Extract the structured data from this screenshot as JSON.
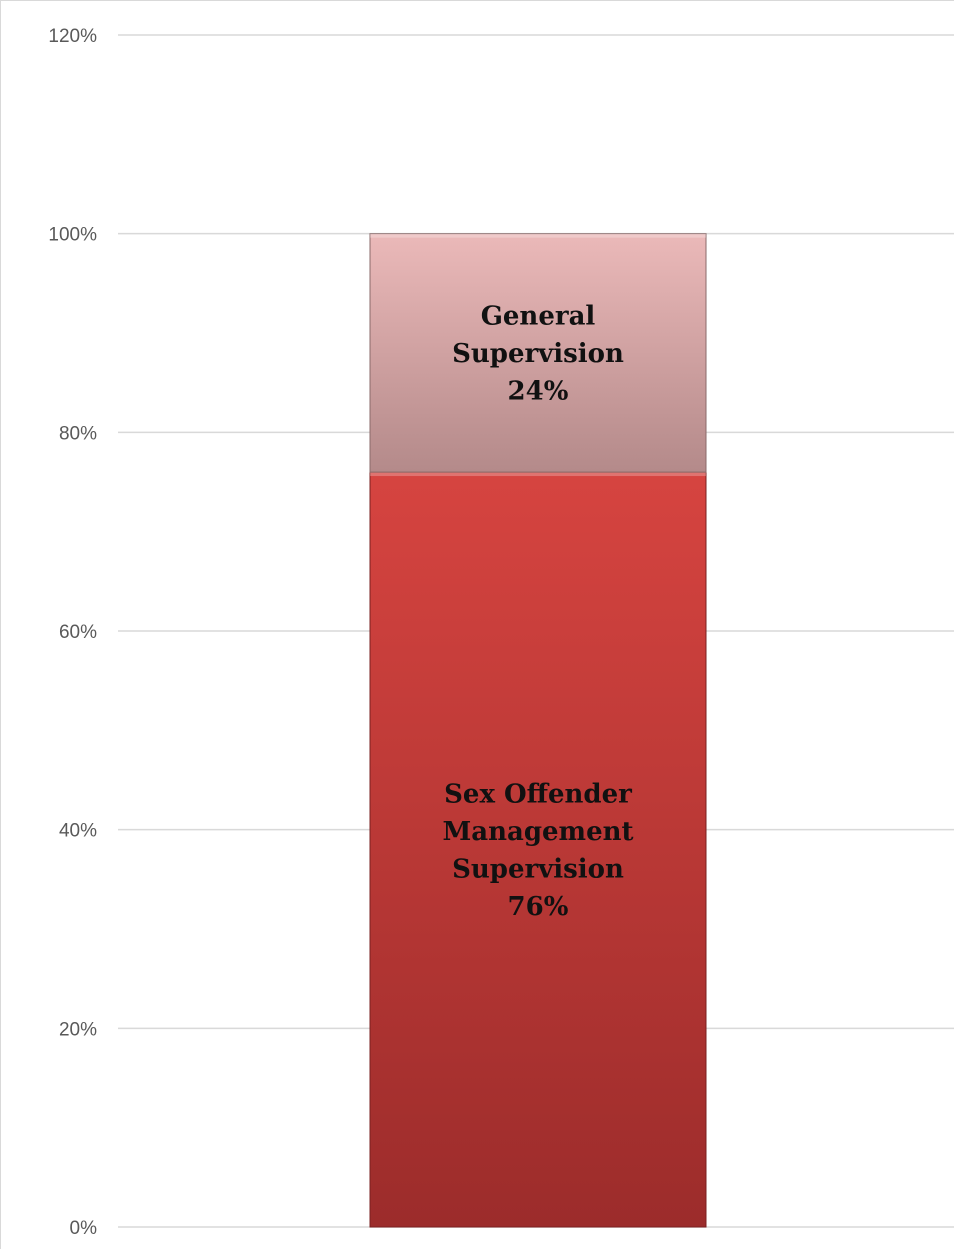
{
  "chart_data": {
    "type": "bar",
    "stacked": true,
    "categories": [
      ""
    ],
    "series": [
      {
        "name": "Sex Offender Management Supervision",
        "values": [
          76
        ],
        "color": "#c0393a",
        "label_lines": [
          "Sex Offender",
          "Management",
          "Supervision",
          "76%"
        ]
      },
      {
        "name": "General Supervision",
        "values": [
          24
        ],
        "color": "#d4a3a3",
        "label_lines": [
          "General",
          "Supervision",
          "24%"
        ]
      }
    ],
    "ylim": [
      0,
      120
    ],
    "y_ticks": [
      0,
      20,
      40,
      60,
      80,
      100,
      120
    ],
    "y_tick_labels": [
      "0%",
      "20%",
      "40%",
      "60%",
      "80%",
      "100%",
      "120%"
    ],
    "grid": true,
    "title": "",
    "xlabel": "",
    "ylabel": ""
  }
}
